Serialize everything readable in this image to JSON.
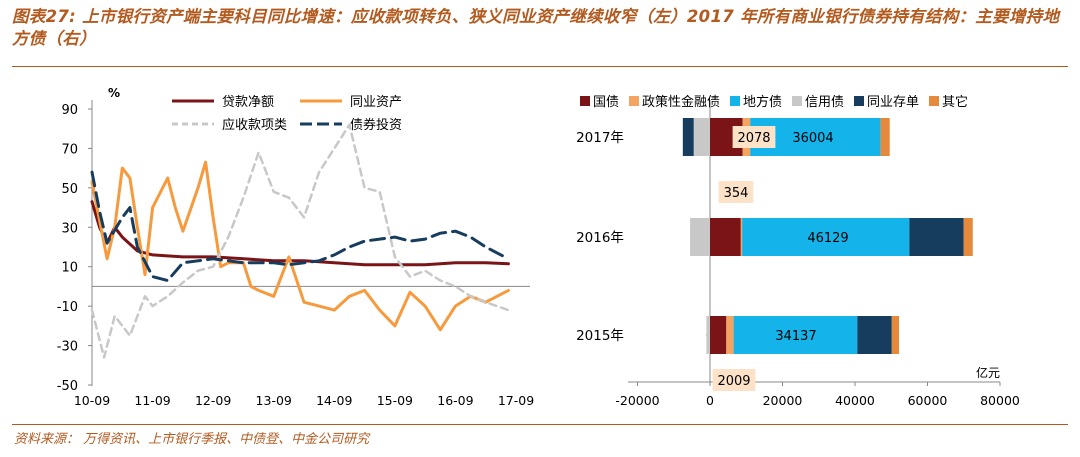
{
  "title": "图表27: 上市银行资产端主要科目同比增速：应收款项转负、狭义同业资产继续收窄（左）2017 年所有商业银行债券持有结构：主要增持地方债（右）",
  "source": "资料来源：   万得资讯、上市银行季报、中债登、中金公司研究",
  "colors": {
    "title": "#b35a1f",
    "loans": "#7b1416",
    "interbank": "#f79a3e",
    "receivables": "#c8c8c8",
    "bonds": "#163c5e",
    "gov": "#7b1416",
    "policy_fin": "#f4a460",
    "local": "#14b4ea",
    "credit": "#c8c8c8",
    "ncd": "#163c5e",
    "other": "#e58a3c"
  },
  "chart_data": [
    {
      "type": "line",
      "unit_label": "%",
      "ylim": [
        -50,
        100
      ],
      "yticks": [
        -50,
        -30,
        -10,
        10,
        30,
        50,
        70,
        90
      ],
      "x_ticks": [
        "10-09",
        "11-09",
        "12-09",
        "13-09",
        "14-09",
        "15-09",
        "16-09",
        "17-09"
      ],
      "x_range": [
        0,
        28
      ],
      "grid": false,
      "legend_position": "top",
      "series": [
        {
          "name": "贷款净额",
          "key": "loans",
          "style": "solid",
          "x": [
            0,
            0.5,
            1,
            1.5,
            2,
            3,
            4,
            6,
            8,
            10,
            12,
            14,
            16,
            18,
            20,
            22,
            24,
            26,
            27.5
          ],
          "y": [
            43,
            30,
            22,
            30,
            25,
            18,
            16,
            15,
            15,
            14,
            13,
            13,
            12,
            11,
            11,
            11,
            12,
            12,
            11.5
          ]
        },
        {
          "name": "同业资产",
          "key": "interbank",
          "style": "solid",
          "x": [
            0,
            1,
            1.5,
            2,
            2.5,
            3,
            3.5,
            4,
            5,
            5.5,
            6,
            7,
            7.5,
            8,
            8.5,
            9,
            10,
            10.5,
            11,
            12,
            13,
            14,
            15,
            16,
            17,
            18,
            19,
            20,
            21,
            22,
            23,
            24,
            25,
            26,
            27.5
          ],
          "y": [
            53,
            14,
            30,
            60,
            55,
            30,
            6,
            40,
            55,
            40,
            28,
            50,
            63,
            35,
            10,
            12,
            12,
            0,
            -2,
            -5,
            15,
            -8,
            -10,
            -12,
            -5,
            -2,
            -12,
            -20,
            -3,
            -10,
            -22,
            -10,
            -5,
            -8,
            -2
          ]
        },
        {
          "name": "应收款项类",
          "key": "receivables",
          "style": "dashed",
          "x": [
            0,
            0.8,
            1.5,
            2.5,
            3.5,
            4,
            5,
            6,
            7,
            8,
            9,
            10,
            11,
            12,
            13,
            14,
            15,
            16,
            17,
            18,
            19,
            20,
            21,
            22,
            23,
            24,
            25,
            26,
            27.5
          ],
          "y": [
            -12,
            -36,
            -15,
            -25,
            -5,
            -10,
            -5,
            2,
            8,
            10,
            25,
            45,
            68,
            48,
            45,
            35,
            58,
            70,
            82,
            50,
            48,
            15,
            5,
            8,
            3,
            0,
            -5,
            -8,
            -12
          ]
        },
        {
          "name": "债券投资",
          "key": "bonds",
          "style": "dashed",
          "x": [
            0,
            0.5,
            1,
            2,
            2.5,
            3,
            4,
            5,
            6,
            7,
            8,
            9,
            10,
            11,
            12,
            13,
            14,
            15,
            16,
            17,
            18,
            19,
            20,
            21,
            22,
            23,
            24,
            25,
            26,
            27.5
          ],
          "y": [
            58,
            38,
            22,
            35,
            40,
            20,
            5,
            3,
            12,
            13,
            14,
            13,
            12,
            12,
            12,
            11,
            12,
            13,
            16,
            20,
            23,
            24,
            25,
            23,
            24,
            27,
            28,
            25,
            20,
            14
          ]
        }
      ]
    },
    {
      "type": "bar",
      "orientation": "horizontal",
      "stacked": true,
      "unit_label": "亿元",
      "xlim": [
        -20000,
        80000
      ],
      "xticks": [
        -20000,
        0,
        20000,
        40000,
        60000,
        80000
      ],
      "categories": [
        "2017年",
        "2016年",
        "2015年"
      ],
      "series": [
        {
          "name": "国债",
          "key": "gov",
          "values": [
            9000,
            8500,
            4500
          ]
        },
        {
          "name": "政策性金融债",
          "key": "policy_fin",
          "values": [
            2078,
            354,
            2009
          ]
        },
        {
          "name": "地方债",
          "key": "local",
          "values": [
            36004,
            46129,
            34137
          ]
        },
        {
          "name": "信用债",
          "key": "credit",
          "values": [
            -4500,
            -5500,
            -1000
          ]
        },
        {
          "name": "同业存单",
          "key": "ncd",
          "values": [
            -3000,
            15000,
            9500
          ]
        },
        {
          "name": "其它",
          "key": "other",
          "values": [
            2500,
            2500,
            2000
          ]
        }
      ],
      "annotations": [
        {
          "category": "2017年",
          "text": "2078",
          "placement": "on-bar-left"
        },
        {
          "category": "2017年",
          "text": "36004",
          "placement": "on-bar-center"
        },
        {
          "category": "2016年",
          "text": "354",
          "placement": "above-bar"
        },
        {
          "category": "2016年",
          "text": "46129",
          "placement": "on-bar-center"
        },
        {
          "category": "2015年",
          "text": "34137",
          "placement": "on-bar-center"
        },
        {
          "category": "2015年",
          "text": "2009",
          "placement": "below-bar"
        }
      ],
      "legend_position": "top"
    }
  ]
}
